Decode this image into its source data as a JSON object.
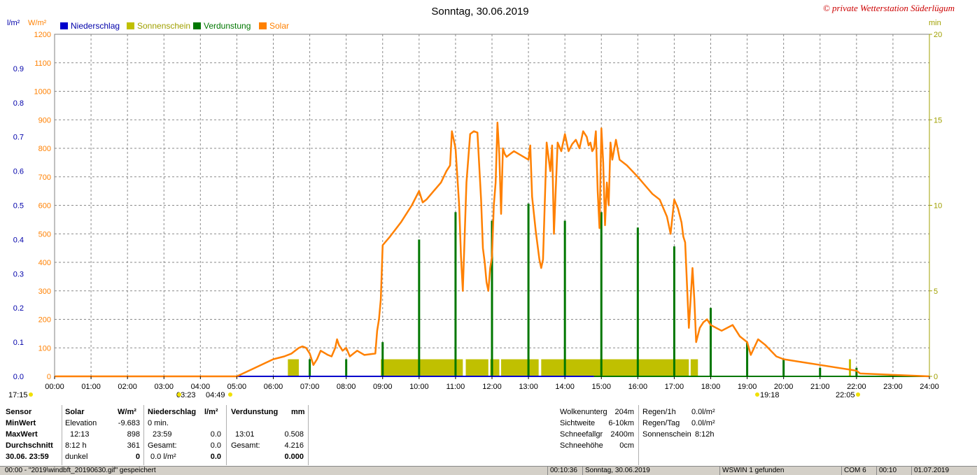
{
  "chart_data": {
    "type": "line",
    "title": "Sonntag, 30.06.2019",
    "copyright": "© private Wetterstation Süderlügum",
    "left_units": [
      "l/m²",
      "W/m²"
    ],
    "right_unit": "min",
    "legend": [
      "Niederschlag",
      "Sonnenschein",
      "Verdunstung",
      "Solar"
    ],
    "colors": {
      "niederschlag": "#0000cc",
      "sonnenschein": "#c0c000",
      "verdunstung": "#007700",
      "solar": "#ff8000",
      "axis_left_blue": "#0000aa",
      "axis_right": "#a0a000"
    },
    "x_ticks": [
      "00:00",
      "01:00",
      "02:00",
      "03:00",
      "04:00",
      "05:00",
      "06:00",
      "07:00",
      "08:00",
      "09:00",
      "10:00",
      "11:00",
      "12:00",
      "13:00",
      "14:00",
      "15:00",
      "16:00",
      "17:00",
      "18:00",
      "19:00",
      "20:00",
      "21:00",
      "22:00",
      "23:00",
      "24:00"
    ],
    "y_rain_ticks": [
      "0.0",
      "0.1",
      "0.2",
      "0.3",
      "0.4",
      "0.5",
      "0.6",
      "0.7",
      "0.8",
      "0.9"
    ],
    "y_solar_ticks": [
      "0",
      "100",
      "200",
      "300",
      "400",
      "500",
      "600",
      "700",
      "800",
      "900",
      "1000",
      "1100",
      "1200"
    ],
    "y_min_ticks": [
      "0",
      "5",
      "10",
      "15",
      "20"
    ],
    "ylim_solar": [
      0,
      1200
    ],
    "ylim_rain": [
      0,
      1.0
    ],
    "ylim_min": [
      0,
      20
    ],
    "grid": true,
    "sun_events": [
      "17:15",
      "03:23",
      "04:49",
      "19:18",
      "22:05"
    ],
    "solar_series": {
      "name": "Solar",
      "t": [
        0,
        5.0,
        5.5,
        6.0,
        6.3,
        6.5,
        6.7,
        6.8,
        6.9,
        7.0,
        7.1,
        7.2,
        7.3,
        7.5,
        7.6,
        7.7,
        7.75,
        7.8,
        7.9,
        8.0,
        8.1,
        8.2,
        8.3,
        8.5,
        8.8,
        8.85,
        8.9,
        8.95,
        9.0,
        9.2,
        9.5,
        9.8,
        10.0,
        10.1,
        10.2,
        10.4,
        10.6,
        10.75,
        10.85,
        10.9,
        11.0,
        11.05,
        11.1,
        11.15,
        11.2,
        11.3,
        11.4,
        11.5,
        11.6,
        11.7,
        11.75,
        11.8,
        11.85,
        11.9,
        11.95,
        12.0,
        12.05,
        12.1,
        12.15,
        12.2,
        12.25,
        12.3,
        12.35,
        12.4,
        12.5,
        12.6,
        12.8,
        13.0,
        13.05,
        13.1,
        13.2,
        13.3,
        13.35,
        13.4,
        13.5,
        13.6,
        13.65,
        13.7,
        13.8,
        13.9,
        14.0,
        14.1,
        14.2,
        14.3,
        14.4,
        14.5,
        14.6,
        14.65,
        14.7,
        14.75,
        14.8,
        14.85,
        14.9,
        14.95,
        15.0,
        15.05,
        15.1,
        15.15,
        15.2,
        15.25,
        15.3,
        15.4,
        15.5,
        15.7,
        16.0,
        16.2,
        16.4,
        16.6,
        16.8,
        16.9,
        17.0,
        17.1,
        17.2,
        17.25,
        17.3,
        17.4,
        17.5,
        17.55,
        17.6,
        17.7,
        17.8,
        17.9,
        18.0,
        18.3,
        18.6,
        18.8,
        19.0,
        19.1,
        19.3,
        19.5,
        19.8,
        20.0,
        20.5,
        21.0,
        21.5,
        22.0,
        22.1,
        24.0
      ],
      "v": [
        0,
        0,
        30,
        60,
        70,
        80,
        100,
        105,
        100,
        80,
        40,
        60,
        90,
        75,
        70,
        100,
        130,
        110,
        90,
        100,
        70,
        80,
        90,
        75,
        80,
        160,
        200,
        270,
        460,
        490,
        540,
        600,
        650,
        610,
        620,
        650,
        680,
        720,
        740,
        860,
        800,
        700,
        600,
        420,
        300,
        680,
        850,
        860,
        855,
        620,
        450,
        400,
        330,
        300,
        380,
        420,
        600,
        680,
        890,
        780,
        570,
        800,
        780,
        770,
        780,
        790,
        775,
        760,
        810,
        630,
        510,
        410,
        380,
        410,
        820,
        720,
        810,
        500,
        820,
        790,
        850,
        790,
        815,
        830,
        800,
        860,
        840,
        810,
        820,
        790,
        800,
        860,
        650,
        520,
        870,
        750,
        530,
        680,
        600,
        820,
        760,
        830,
        760,
        740,
        700,
        670,
        640,
        620,
        560,
        500,
        620,
        590,
        540,
        490,
        470,
        170,
        380,
        270,
        120,
        170,
        190,
        200,
        180,
        160,
        180,
        140,
        120,
        75,
        130,
        110,
        70,
        60,
        50,
        40,
        30,
        20,
        10,
        0,
        0
      ]
    },
    "sunshine_series": {
      "name": "Sonnenschein",
      "unit": "min",
      "segments": [
        {
          "start": 6.4,
          "end": 6.7,
          "value": 1
        },
        {
          "start": 8.95,
          "end": 11.2,
          "value": 1
        },
        {
          "start": 11.28,
          "end": 11.9,
          "value": 1
        },
        {
          "start": 11.95,
          "end": 12.2,
          "value": 1
        },
        {
          "start": 12.25,
          "end": 13.28,
          "value": 1
        },
        {
          "start": 13.35,
          "end": 17.4,
          "value": 1
        },
        {
          "start": 17.45,
          "end": 17.65,
          "value": 1
        }
      ],
      "spikes": [
        {
          "t": 21.82,
          "value": 1
        }
      ]
    },
    "evap_series": {
      "name": "Verdunstung",
      "unit": "min",
      "bars": [
        {
          "t": 7.0,
          "value": 1
        },
        {
          "t": 8.0,
          "value": 1
        },
        {
          "t": 9.0,
          "value": 2
        },
        {
          "t": 10.0,
          "value": 8
        },
        {
          "t": 11.0,
          "value": 9.6
        },
        {
          "t": 12.0,
          "value": 9.1
        },
        {
          "t": 13.0,
          "value": 10.1
        },
        {
          "t": 14.0,
          "value": 9.1
        },
        {
          "t": 15.0,
          "value": 9.6
        },
        {
          "t": 16.0,
          "value": 8.7
        },
        {
          "t": 17.0,
          "value": 7.6
        },
        {
          "t": 18.0,
          "value": 4
        },
        {
          "t": 19.0,
          "value": 2
        },
        {
          "t": 20.0,
          "value": 1
        },
        {
          "t": 21.0,
          "value": 0.5
        },
        {
          "t": 22.0,
          "value": 0.5
        }
      ]
    }
  },
  "table": {
    "col_sensor": {
      "header": "Sensor",
      "rows": [
        "MinWert",
        "MaxWert",
        "Durchschnitt",
        "30.06.  23:59"
      ]
    },
    "col_solar": {
      "header": "Solar",
      "unit": "W/m²",
      "rows": [
        [
          "Elevation",
          "-9.683"
        ],
        [
          "12:13",
          "898"
        ],
        [
          "8:12 h",
          "361"
        ],
        [
          "dunkel",
          "0"
        ]
      ]
    },
    "col_rain": {
      "header": "Niederschlag",
      "unit": "l/m²",
      "rows": [
        [
          "0 min.",
          ""
        ],
        [
          "23:59",
          "0.0"
        ],
        [
          "Gesamt:",
          "0.0"
        ],
        [
          "0.0 l/m²",
          "0.0"
        ]
      ]
    },
    "col_evap": {
      "header": "Verdunstung",
      "unit": "mm",
      "rows": [
        [
          "",
          ""
        ],
        [
          "13:01",
          "0.508"
        ],
        [
          "Gesamt:",
          "4.216"
        ],
        [
          "",
          "0.000"
        ]
      ]
    },
    "right_info_1": [
      [
        "Wolkenunterg",
        "204m"
      ],
      [
        "Sichtweite",
        "6-10km"
      ],
      [
        "Schneefallgr",
        "2400m"
      ],
      [
        "Schneehöhe",
        "0cm"
      ]
    ],
    "right_info_2": [
      [
        "Regen/1h",
        "0.0l/m²"
      ],
      [
        "Regen/Tag",
        "0.0l/m²"
      ],
      [
        "Sonnenschein",
        "8:12h"
      ]
    ]
  },
  "statusbar": {
    "msg": "00:00 - \"2019\\windbft_20190630.gif\" gespeichert",
    "time1": "00:10:36",
    "date_label": "Sonntag, 30.06.2019",
    "device": "WSWIN 1 gefunden",
    "port": "COM 6",
    "time2": "00:10",
    "date2": "01.07.2019"
  }
}
